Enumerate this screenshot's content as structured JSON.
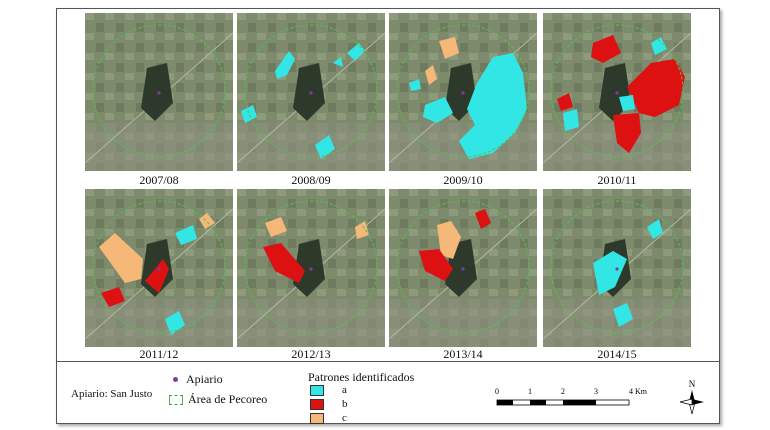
{
  "panels": [
    {
      "year": "2007/08"
    },
    {
      "year": "2008/09"
    },
    {
      "year": "2009/10"
    },
    {
      "year": "2010/11"
    },
    {
      "year": "2011/12"
    },
    {
      "year": "2012/13"
    },
    {
      "year": "2013/14"
    },
    {
      "year": "2014/15"
    }
  ],
  "legend": {
    "apiario_label": "Apiario: San Justo",
    "apiario": "Apiario",
    "area": "Área de Pecoreo",
    "patrones_title": "Patrones identificados",
    "patterns": [
      {
        "label": "a",
        "color": "#33e6e6"
      },
      {
        "label": "b",
        "color": "#dd1111"
      },
      {
        "label": "c",
        "color": "#f5b878"
      }
    ],
    "scale_ticks": [
      "0",
      "1",
      "2",
      "3",
      "4 Km"
    ],
    "north": "N"
  },
  "colors": {
    "terrain": "#7d8a6c",
    "buffer": "#4fc24f"
  }
}
